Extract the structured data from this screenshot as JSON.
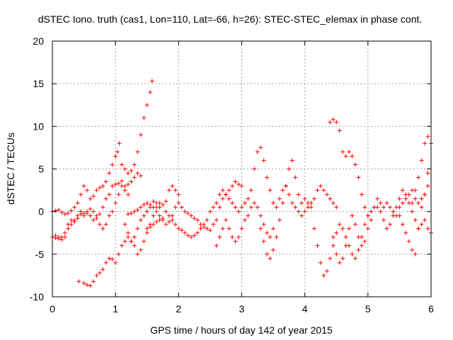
{
  "chart_data": {
    "type": "scatter",
    "title": "dSTEC Iono. truth (cas1, Lon=110, Lat=-66, h=26): STEC-STEC_elemax in phase cont.",
    "xlabel": "GPS time / hours of day 142 of year 2015",
    "ylabel": "dSTEC  / TECUs",
    "xlim": [
      0,
      6
    ],
    "ylim": [
      -10,
      20
    ],
    "x_ticks": [
      0,
      1,
      2,
      3,
      4,
      5,
      6
    ],
    "y_ticks": [
      -10,
      -5,
      0,
      5,
      10,
      15,
      20
    ],
    "x_tick_labels": [
      "0",
      "1",
      "2",
      "3",
      "4",
      "5",
      "6"
    ],
    "y_tick_labels": [
      "-10",
      "-5",
      "0",
      "5",
      "10",
      "15",
      "20"
    ],
    "grid": true,
    "marker": "plus",
    "color": "#ff0000",
    "series": [
      {
        "x": [
          0.0,
          0.05,
          0.1,
          0.15,
          0.2,
          0.25,
          0.3,
          0.35,
          0.4,
          0.45,
          0.5,
          0.55,
          0.6,
          0.65,
          0.7,
          0.75,
          0.8,
          0.85,
          0.9,
          0.95,
          1.0,
          1.03,
          1.06,
          1.1,
          1.15,
          1.2,
          1.25,
          1.3,
          1.35,
          1.4,
          1.45,
          1.5,
          1.55,
          1.58
        ],
        "y": [
          0.0,
          0.1,
          0.2,
          -0.1,
          -0.3,
          -0.2,
          0.1,
          0.5,
          1.0,
          2.0,
          3.0,
          2.5,
          1.5,
          1.8,
          2.5,
          2.8,
          3.0,
          3.5,
          4.5,
          5.5,
          6.5,
          7.0,
          8.0,
          5.5,
          5.0,
          4.5,
          4.8,
          5.5,
          7.0,
          9.0,
          11.0,
          12.5,
          14.0,
          15.3
        ]
      },
      {
        "x": [
          0.0,
          0.05,
          0.1,
          0.15,
          0.2,
          0.25,
          0.3,
          0.35,
          0.4,
          0.45,
          0.5,
          0.55,
          0.6,
          0.65,
          0.7,
          0.75,
          0.8,
          0.85,
          0.9,
          0.95,
          1.0,
          1.05,
          1.1,
          1.15,
          1.2
        ],
        "y": [
          -3.0,
          -3.1,
          -3.2,
          -3.0,
          -2.5,
          -2.0,
          -1.5,
          -1.0,
          -0.5,
          -0.3,
          -0.2,
          0.0,
          0.3,
          0.0,
          -0.5,
          -0.3,
          0.5,
          1.5,
          2.0,
          3.0,
          3.2,
          3.3,
          3.6,
          3.0,
          3.2
        ]
      },
      {
        "x": [
          0.05,
          0.1,
          0.15,
          0.2,
          0.25,
          0.3,
          0.35,
          0.4,
          0.45,
          0.5,
          0.55,
          0.6,
          0.65,
          0.7,
          0.75,
          0.8,
          0.85,
          0.9,
          0.95,
          1.0,
          1.05,
          1.1,
          1.15,
          1.2,
          1.25,
          1.3,
          1.35,
          1.4
        ],
        "y": [
          -2.8,
          -3.0,
          -3.3,
          -3.0,
          -1.5,
          -1.0,
          -1.2,
          -0.8,
          0.0,
          -0.5,
          -0.2,
          -0.5,
          -1.0,
          -0.8,
          -1.5,
          -2.0,
          -1.5,
          -0.5,
          0.0,
          1.0,
          2.0,
          3.0,
          2.5,
          2.0,
          3.5,
          4.0,
          4.5,
          4.2
        ]
      },
      {
        "x": [
          0.42,
          0.5,
          0.55,
          0.6,
          0.65,
          0.7,
          0.75,
          0.8,
          0.85,
          0.9,
          0.95,
          1.0,
          1.05,
          1.1,
          1.15,
          1.2,
          1.25,
          1.3,
          1.35,
          1.4,
          1.45,
          1.5,
          1.55,
          1.6,
          1.65,
          1.7
        ],
        "y": [
          -8.2,
          -8.4,
          -8.6,
          -8.7,
          -8.2,
          -7.5,
          -7.2,
          -6.8,
          -6.0,
          -5.5,
          -5.6,
          -6.0,
          -5.0,
          -4.0,
          -3.5,
          -3.0,
          -3.5,
          -4.0,
          -5.0,
          -4.5,
          -3.5,
          -2.5,
          -1.5,
          -0.5,
          0.5,
          1.0
        ]
      },
      {
        "x": [
          1.15,
          1.2,
          1.25,
          1.3,
          1.35,
          1.4,
          1.45,
          1.5,
          1.55,
          1.6,
          1.65,
          1.7,
          1.75,
          1.8,
          1.85,
          1.9,
          1.95,
          2.0
        ],
        "y": [
          -1.5,
          -2.5,
          -3.5,
          -3.0,
          -2.0,
          -1.0,
          -0.5,
          0.0,
          0.5,
          1.2,
          1.0,
          0.5,
          0.8,
          1.2,
          2.5,
          3.0,
          2.5,
          2.0
        ]
      },
      {
        "x": [
          1.2,
          1.25,
          1.3,
          1.35,
          1.4,
          1.45,
          1.5,
          1.55,
          1.6,
          1.65,
          1.7,
          1.75,
          1.8,
          1.85,
          1.9,
          1.95,
          2.0,
          2.05,
          2.1,
          2.15,
          2.2,
          2.25,
          2.3,
          2.35,
          2.4,
          2.45,
          2.5,
          2.55,
          2.6,
          2.65,
          2.7,
          2.75,
          2.8,
          2.85,
          2.9,
          2.95,
          3.0
        ],
        "y": [
          -0.3,
          -0.2,
          0.0,
          0.2,
          0.5,
          0.8,
          1.0,
          0.8,
          0.5,
          0.0,
          -0.5,
          -1.0,
          -1.5,
          -1.2,
          -0.5,
          0.5,
          1.0,
          0.5,
          0.0,
          -0.2,
          -0.5,
          -0.8,
          -1.0,
          -1.5,
          -1.8,
          -2.0,
          -2.2,
          -1.5,
          -1.0,
          0.5,
          1.5,
          2.0,
          2.5,
          3.0,
          3.5,
          3.2,
          3.0
        ]
      },
      {
        "x": [
          1.5,
          1.55,
          1.6,
          1.65,
          1.7,
          1.75,
          1.8,
          1.85,
          1.9,
          1.95,
          2.0,
          2.05,
          2.1,
          2.15,
          2.2,
          2.25,
          2.3,
          2.35,
          2.4,
          2.45,
          2.5,
          2.55,
          2.6,
          2.65,
          2.7,
          2.75,
          2.8,
          2.85,
          2.9,
          2.95
        ],
        "y": [
          -2.0,
          -1.8,
          -1.5,
          -1.2,
          -1.0,
          -0.8,
          0.0,
          -0.5,
          -1.0,
          -1.5,
          -2.0,
          -2.2,
          -2.5,
          -2.8,
          -3.0,
          -2.8,
          -2.5,
          -2.0,
          -1.5,
          -1.0,
          0.0,
          0.5,
          1.0,
          2.0,
          2.5,
          2.0,
          1.5,
          1.0,
          0.5,
          0.0
        ]
      },
      {
        "x": [
          2.6,
          2.65,
          2.7,
          2.75,
          2.8,
          2.85,
          2.9,
          2.95,
          3.0,
          3.05,
          3.1,
          3.15,
          3.2,
          3.25,
          3.3,
          3.35,
          3.4,
          3.45,
          3.5
        ],
        "y": [
          -4.0,
          -3.0,
          -2.0,
          -1.0,
          -2.0,
          -3.0,
          -3.5,
          -3.0,
          -2.0,
          -1.0,
          -0.5,
          0.5,
          1.0,
          0.5,
          -0.5,
          -1.5,
          -2.5,
          -3.0,
          -2.0
        ]
      },
      {
        "x": [
          3.0,
          3.05,
          3.1,
          3.15,
          3.2,
          3.25,
          3.3,
          3.35,
          3.4,
          3.45,
          3.5,
          3.55,
          3.6,
          3.65,
          3.7,
          3.75,
          3.8,
          3.85,
          3.9,
          3.95,
          4.0,
          4.05,
          4.1,
          4.15,
          4.2,
          4.25,
          4.3,
          4.35,
          4.4,
          4.45,
          4.5
        ],
        "y": [
          0.5,
          1.0,
          1.5,
          2.5,
          5.0,
          7.0,
          7.5,
          6.0,
          4.0,
          2.5,
          1.0,
          0.5,
          1.5,
          2.5,
          3.0,
          2.0,
          1.0,
          0.5,
          0.0,
          -0.5,
          0.0,
          0.5,
          1.0,
          1.5,
          2.5,
          3.0,
          2.5,
          2.0,
          1.5,
          1.0,
          0.5
        ]
      },
      {
        "x": [
          3.3,
          3.35,
          3.4,
          3.45,
          3.5,
          3.55,
          3.6,
          3.65,
          3.7,
          3.75,
          3.8,
          3.85,
          3.9,
          3.95,
          4.0,
          4.05,
          4.1
        ],
        "y": [
          -2.0,
          -3.5,
          -5.0,
          -5.5,
          -4.5,
          -3.0,
          -1.0,
          1.0,
          3.0,
          5.0,
          6.0,
          4.0,
          2.0,
          1.0,
          1.5,
          1.0,
          0.5
        ]
      },
      {
        "x": [
          4.15,
          4.2,
          4.25,
          4.3,
          4.35,
          4.4,
          4.45,
          4.5,
          4.55,
          4.6,
          4.65,
          4.7,
          4.75,
          4.8,
          4.85,
          4.9,
          4.95,
          5.0
        ],
        "y": [
          -2.0,
          -4.0,
          -6.0,
          -7.5,
          -7.0,
          -5.5,
          -4.0,
          -2.5,
          -1.5,
          -2.0,
          -3.0,
          -4.0,
          -5.0,
          -5.5,
          -4.5,
          -3.0,
          -1.5,
          -0.5
        ]
      },
      {
        "x": [
          4.4,
          4.45,
          4.5,
          4.55,
          4.6,
          4.65,
          4.7,
          4.75,
          4.8,
          4.85,
          4.9,
          4.95,
          5.0,
          5.05,
          5.1,
          5.15,
          5.2,
          5.25,
          5.3,
          5.35,
          5.4,
          5.45,
          5.5,
          5.55,
          5.6,
          5.65,
          5.7,
          5.75,
          5.8,
          5.85,
          5.9,
          5.95
        ],
        "y": [
          10.5,
          10.8,
          10.5,
          9.5,
          7.0,
          6.5,
          7.0,
          6.5,
          5.5,
          4.0,
          2.0,
          0.5,
          -0.5,
          0.0,
          0.5,
          0.5,
          0.0,
          0.5,
          1.0,
          0.5,
          0.0,
          -0.5,
          0.5,
          1.0,
          1.5,
          2.0,
          2.5,
          1.5,
          1.0,
          1.5,
          2.0,
          3.0
        ]
      },
      {
        "x": [
          4.45,
          4.5,
          4.55,
          4.6,
          4.65,
          4.7,
          4.75,
          4.8,
          4.85,
          4.9,
          4.95,
          5.0,
          5.05,
          5.1,
          5.15,
          5.2,
          5.25,
          5.3,
          5.35,
          5.4,
          5.45,
          5.5,
          5.55,
          5.6,
          5.65,
          5.7,
          5.75,
          5.8,
          5.85,
          5.9,
          5.95,
          6.0
        ],
        "y": [
          -3.0,
          -5.0,
          -6.0,
          -5.5,
          -4.0,
          -2.0,
          -0.5,
          -1.5,
          -3.0,
          -4.0,
          -3.5,
          -2.0,
          -1.0,
          0.5,
          1.5,
          1.0,
          -1.0,
          -2.0,
          -1.5,
          -0.5,
          0.5,
          1.5,
          2.5,
          2.0,
          1.0,
          0.0,
          -1.0,
          -2.0,
          -1.5,
          -1.0,
          -2.0,
          -2.5
        ]
      },
      {
        "x": [
          5.5,
          5.55,
          5.6,
          5.65,
          5.7,
          5.75,
          5.8,
          5.85,
          5.9,
          5.95,
          6.0
        ],
        "y": [
          -0.5,
          -1.5,
          -2.5,
          -3.5,
          -4.5,
          -5.0,
          -2.0,
          0.5,
          2.0,
          4.5,
          8.0
        ]
      },
      {
        "x": [
          5.7,
          5.75,
          5.8,
          5.85,
          5.9,
          5.95
        ],
        "y": [
          1.0,
          2.5,
          4.0,
          6.0,
          8.0,
          8.8
        ]
      }
    ]
  }
}
